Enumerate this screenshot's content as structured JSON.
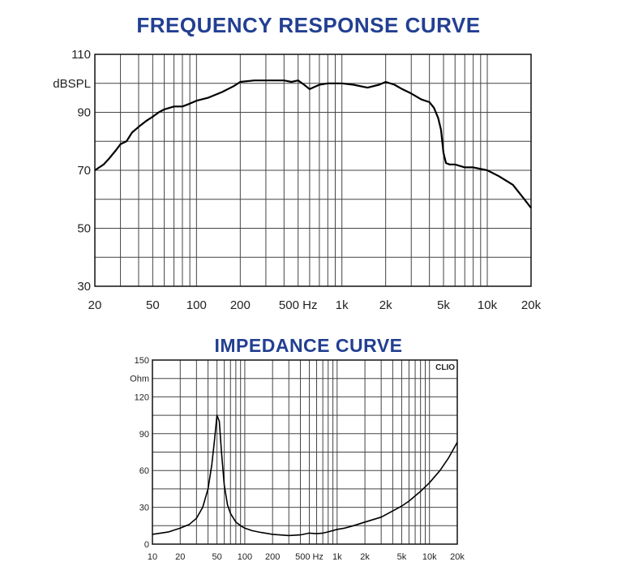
{
  "chart_data": [
    {
      "type": "line",
      "title": "FREQUENCY RESPONSE CURVE",
      "x_scale": "log",
      "xlim": [
        20,
        20000
      ],
      "ylim": [
        30,
        110
      ],
      "ylabel": "dBSPL",
      "y_ticks": [
        {
          "value": 110,
          "label": "110"
        },
        {
          "value": 90,
          "label": "90"
        },
        {
          "value": 70,
          "label": "70"
        },
        {
          "value": 50,
          "label": "50"
        },
        {
          "value": 30,
          "label": "30"
        }
      ],
      "x_ticks": [
        {
          "value": 20,
          "label": "20"
        },
        {
          "value": 50,
          "label": "50"
        },
        {
          "value": 100,
          "label": "100"
        },
        {
          "value": 200,
          "label": "200"
        },
        {
          "value": 500,
          "label": "500 Hz"
        },
        {
          "value": 1000,
          "label": "1k"
        },
        {
          "value": 2000,
          "label": "2k"
        },
        {
          "value": 5000,
          "label": "5k"
        },
        {
          "value": 10000,
          "label": "10k"
        },
        {
          "value": 20000,
          "label": "20k"
        }
      ],
      "series": [
        {
          "x": [
            20,
            23,
            25,
            28,
            30,
            33,
            36,
            40,
            45,
            50,
            55,
            60,
            70,
            80,
            90,
            100,
            120,
            150,
            180,
            200,
            250,
            300,
            350,
            400,
            450,
            500,
            550,
            600,
            700,
            800,
            1000,
            1200,
            1500,
            1800,
            2000,
            2300,
            2600,
            3000,
            3500,
            4000,
            4300,
            4600,
            4800,
            5000,
            5200,
            5500,
            6000,
            7000,
            8000,
            10000,
            12000,
            15000,
            18000,
            20000
          ],
          "y": [
            70,
            72,
            74,
            77,
            79,
            80,
            83,
            85,
            87,
            88.5,
            90,
            91,
            92,
            92,
            93,
            94,
            95,
            97,
            99,
            100.5,
            101,
            101,
            101,
            101,
            100.5,
            101,
            99.5,
            98,
            99.5,
            100,
            100,
            99.5,
            98.5,
            99.5,
            100.5,
            99.5,
            98,
            96.5,
            94.5,
            93.5,
            91.5,
            88,
            84,
            76,
            72.5,
            72,
            72,
            71,
            71,
            70,
            68,
            65,
            60,
            57
          ]
        }
      ],
      "grid": true
    },
    {
      "type": "line",
      "title": "IMPEDANCE CURVE",
      "x_scale": "log",
      "xlim": [
        10,
        20000
      ],
      "ylim": [
        0,
        150
      ],
      "ylabel": "Ohm",
      "watermark": "CLIO",
      "y_ticks": [
        {
          "value": 150,
          "label": "150"
        },
        {
          "value": 120,
          "label": "120"
        },
        {
          "value": 90,
          "label": "90"
        },
        {
          "value": 60,
          "label": "60"
        },
        {
          "value": 30,
          "label": "30"
        },
        {
          "value": 0,
          "label": "0"
        }
      ],
      "x_ticks": [
        {
          "value": 10,
          "label": "10"
        },
        {
          "value": 20,
          "label": "20"
        },
        {
          "value": 50,
          "label": "50"
        },
        {
          "value": 100,
          "label": "100"
        },
        {
          "value": 200,
          "label": "200"
        },
        {
          "value": 500,
          "label": "500 Hz"
        },
        {
          "value": 1000,
          "label": "1k"
        },
        {
          "value": 2000,
          "label": "2k"
        },
        {
          "value": 5000,
          "label": "5k"
        },
        {
          "value": 10000,
          "label": "10k"
        },
        {
          "value": 20000,
          "label": "20k"
        }
      ],
      "series": [
        {
          "x": [
            10,
            15,
            20,
            25,
            30,
            35,
            40,
            44,
            47,
            50,
            53,
            56,
            60,
            65,
            70,
            80,
            90,
            100,
            120,
            150,
            200,
            300,
            400,
            500,
            600,
            700,
            800,
            1000,
            1200,
            1500,
            2000,
            3000,
            4000,
            5000,
            6000,
            8000,
            10000,
            13000,
            16000,
            20000
          ],
          "y": [
            8,
            10,
            13,
            16,
            21,
            30,
            45,
            65,
            85,
            105,
            100,
            75,
            48,
            32,
            25,
            18,
            15,
            13,
            11,
            9.5,
            8,
            7,
            7.5,
            9,
            8.5,
            9,
            10,
            12,
            13,
            15,
            18,
            22,
            27,
            31,
            35,
            43,
            50,
            60,
            70,
            83
          ]
        }
      ],
      "grid": true
    }
  ]
}
